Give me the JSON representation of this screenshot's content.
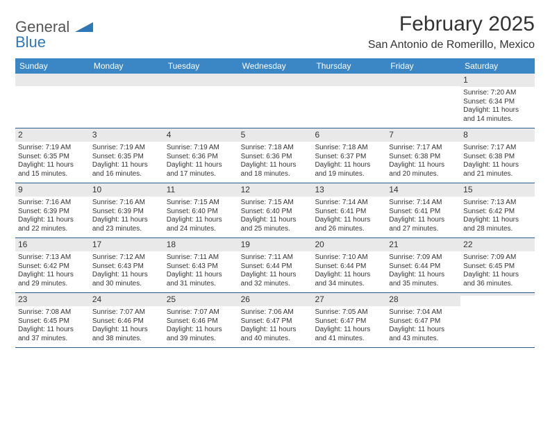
{
  "logo": {
    "general": "General",
    "blue": "Blue"
  },
  "title": "February 2025",
  "location": "San Antonio de Romerillo, Mexico",
  "colors": {
    "header_bg": "#3b86c4",
    "header_text": "#ffffff",
    "row_border": "#2a5a8a",
    "daynum_bg": "#e9e9e9",
    "text": "#333333",
    "logo_blue": "#2f78b7"
  },
  "fonts": {
    "title_size": 30,
    "location_size": 16,
    "dayheader_size": 12,
    "daynum_size": 12,
    "body_size": 10
  },
  "day_headers": [
    "Sunday",
    "Monday",
    "Tuesday",
    "Wednesday",
    "Thursday",
    "Friday",
    "Saturday"
  ],
  "weeks": [
    [
      {
        "n": "",
        "sunrise": "",
        "sunset": "",
        "daylight1": "",
        "daylight2": ""
      },
      {
        "n": "",
        "sunrise": "",
        "sunset": "",
        "daylight1": "",
        "daylight2": ""
      },
      {
        "n": "",
        "sunrise": "",
        "sunset": "",
        "daylight1": "",
        "daylight2": ""
      },
      {
        "n": "",
        "sunrise": "",
        "sunset": "",
        "daylight1": "",
        "daylight2": ""
      },
      {
        "n": "",
        "sunrise": "",
        "sunset": "",
        "daylight1": "",
        "daylight2": ""
      },
      {
        "n": "",
        "sunrise": "",
        "sunset": "",
        "daylight1": "",
        "daylight2": ""
      },
      {
        "n": "1",
        "sunrise": "Sunrise: 7:20 AM",
        "sunset": "Sunset: 6:34 PM",
        "daylight1": "Daylight: 11 hours",
        "daylight2": "and 14 minutes."
      }
    ],
    [
      {
        "n": "2",
        "sunrise": "Sunrise: 7:19 AM",
        "sunset": "Sunset: 6:35 PM",
        "daylight1": "Daylight: 11 hours",
        "daylight2": "and 15 minutes."
      },
      {
        "n": "3",
        "sunrise": "Sunrise: 7:19 AM",
        "sunset": "Sunset: 6:35 PM",
        "daylight1": "Daylight: 11 hours",
        "daylight2": "and 16 minutes."
      },
      {
        "n": "4",
        "sunrise": "Sunrise: 7:19 AM",
        "sunset": "Sunset: 6:36 PM",
        "daylight1": "Daylight: 11 hours",
        "daylight2": "and 17 minutes."
      },
      {
        "n": "5",
        "sunrise": "Sunrise: 7:18 AM",
        "sunset": "Sunset: 6:36 PM",
        "daylight1": "Daylight: 11 hours",
        "daylight2": "and 18 minutes."
      },
      {
        "n": "6",
        "sunrise": "Sunrise: 7:18 AM",
        "sunset": "Sunset: 6:37 PM",
        "daylight1": "Daylight: 11 hours",
        "daylight2": "and 19 minutes."
      },
      {
        "n": "7",
        "sunrise": "Sunrise: 7:17 AM",
        "sunset": "Sunset: 6:38 PM",
        "daylight1": "Daylight: 11 hours",
        "daylight2": "and 20 minutes."
      },
      {
        "n": "8",
        "sunrise": "Sunrise: 7:17 AM",
        "sunset": "Sunset: 6:38 PM",
        "daylight1": "Daylight: 11 hours",
        "daylight2": "and 21 minutes."
      }
    ],
    [
      {
        "n": "9",
        "sunrise": "Sunrise: 7:16 AM",
        "sunset": "Sunset: 6:39 PM",
        "daylight1": "Daylight: 11 hours",
        "daylight2": "and 22 minutes."
      },
      {
        "n": "10",
        "sunrise": "Sunrise: 7:16 AM",
        "sunset": "Sunset: 6:39 PM",
        "daylight1": "Daylight: 11 hours",
        "daylight2": "and 23 minutes."
      },
      {
        "n": "11",
        "sunrise": "Sunrise: 7:15 AM",
        "sunset": "Sunset: 6:40 PM",
        "daylight1": "Daylight: 11 hours",
        "daylight2": "and 24 minutes."
      },
      {
        "n": "12",
        "sunrise": "Sunrise: 7:15 AM",
        "sunset": "Sunset: 6:40 PM",
        "daylight1": "Daylight: 11 hours",
        "daylight2": "and 25 minutes."
      },
      {
        "n": "13",
        "sunrise": "Sunrise: 7:14 AM",
        "sunset": "Sunset: 6:41 PM",
        "daylight1": "Daylight: 11 hours",
        "daylight2": "and 26 minutes."
      },
      {
        "n": "14",
        "sunrise": "Sunrise: 7:14 AM",
        "sunset": "Sunset: 6:41 PM",
        "daylight1": "Daylight: 11 hours",
        "daylight2": "and 27 minutes."
      },
      {
        "n": "15",
        "sunrise": "Sunrise: 7:13 AM",
        "sunset": "Sunset: 6:42 PM",
        "daylight1": "Daylight: 11 hours",
        "daylight2": "and 28 minutes."
      }
    ],
    [
      {
        "n": "16",
        "sunrise": "Sunrise: 7:13 AM",
        "sunset": "Sunset: 6:42 PM",
        "daylight1": "Daylight: 11 hours",
        "daylight2": "and 29 minutes."
      },
      {
        "n": "17",
        "sunrise": "Sunrise: 7:12 AM",
        "sunset": "Sunset: 6:43 PM",
        "daylight1": "Daylight: 11 hours",
        "daylight2": "and 30 minutes."
      },
      {
        "n": "18",
        "sunrise": "Sunrise: 7:11 AM",
        "sunset": "Sunset: 6:43 PM",
        "daylight1": "Daylight: 11 hours",
        "daylight2": "and 31 minutes."
      },
      {
        "n": "19",
        "sunrise": "Sunrise: 7:11 AM",
        "sunset": "Sunset: 6:44 PM",
        "daylight1": "Daylight: 11 hours",
        "daylight2": "and 32 minutes."
      },
      {
        "n": "20",
        "sunrise": "Sunrise: 7:10 AM",
        "sunset": "Sunset: 6:44 PM",
        "daylight1": "Daylight: 11 hours",
        "daylight2": "and 34 minutes."
      },
      {
        "n": "21",
        "sunrise": "Sunrise: 7:09 AM",
        "sunset": "Sunset: 6:44 PM",
        "daylight1": "Daylight: 11 hours",
        "daylight2": "and 35 minutes."
      },
      {
        "n": "22",
        "sunrise": "Sunrise: 7:09 AM",
        "sunset": "Sunset: 6:45 PM",
        "daylight1": "Daylight: 11 hours",
        "daylight2": "and 36 minutes."
      }
    ],
    [
      {
        "n": "23",
        "sunrise": "Sunrise: 7:08 AM",
        "sunset": "Sunset: 6:45 PM",
        "daylight1": "Daylight: 11 hours",
        "daylight2": "and 37 minutes."
      },
      {
        "n": "24",
        "sunrise": "Sunrise: 7:07 AM",
        "sunset": "Sunset: 6:46 PM",
        "daylight1": "Daylight: 11 hours",
        "daylight2": "and 38 minutes."
      },
      {
        "n": "25",
        "sunrise": "Sunrise: 7:07 AM",
        "sunset": "Sunset: 6:46 PM",
        "daylight1": "Daylight: 11 hours",
        "daylight2": "and 39 minutes."
      },
      {
        "n": "26",
        "sunrise": "Sunrise: 7:06 AM",
        "sunset": "Sunset: 6:47 PM",
        "daylight1": "Daylight: 11 hours",
        "daylight2": "and 40 minutes."
      },
      {
        "n": "27",
        "sunrise": "Sunrise: 7:05 AM",
        "sunset": "Sunset: 6:47 PM",
        "daylight1": "Daylight: 11 hours",
        "daylight2": "and 41 minutes."
      },
      {
        "n": "28",
        "sunrise": "Sunrise: 7:04 AM",
        "sunset": "Sunset: 6:47 PM",
        "daylight1": "Daylight: 11 hours",
        "daylight2": "and 43 minutes."
      },
      {
        "n": "",
        "sunrise": "",
        "sunset": "",
        "daylight1": "",
        "daylight2": ""
      }
    ]
  ]
}
